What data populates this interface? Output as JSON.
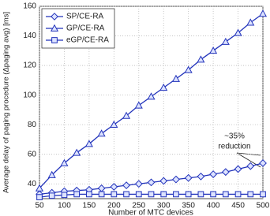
{
  "chart_data": {
    "type": "line",
    "xlabel": "Number of MTC devices",
    "ylabel": "Average delay of paging procedure (Δpaging avg) [ms]",
    "x": [
      50,
      75,
      100,
      125,
      150,
      175,
      200,
      225,
      250,
      275,
      300,
      325,
      350,
      375,
      400,
      425,
      450,
      475,
      500
    ],
    "series": [
      {
        "name": "SP/CE-RA",
        "color": "#2233bb",
        "marker": "diamond",
        "values": [
          33,
          34,
          35,
          35.5,
          36,
          37,
          38,
          39,
          40,
          41,
          42,
          43,
          44,
          45,
          46.5,
          48,
          50,
          52,
          54
        ]
      },
      {
        "name": "GP/CE-RA",
        "color": "#2233bb",
        "marker": "triangle",
        "values": [
          37,
          46,
          54,
          61,
          67,
          74,
          80,
          86,
          93,
          99,
          105,
          111,
          117,
          124,
          130,
          136,
          142,
          149,
          155
        ]
      },
      {
        "name": "eGP/CE-RA",
        "color": "#2233bb",
        "marker": "square",
        "values": [
          31,
          32,
          32.5,
          33,
          33,
          33,
          33,
          33,
          33,
          33,
          33,
          33,
          33,
          33,
          33,
          33,
          33,
          33,
          33
        ]
      }
    ],
    "xlim": [
      50,
      500
    ],
    "xticks": [
      50,
      100,
      150,
      200,
      250,
      300,
      350,
      400,
      450,
      500
    ],
    "ylim": [
      30,
      160
    ],
    "yticks": [
      40,
      60,
      80,
      100,
      120,
      140,
      160
    ],
    "grid": true,
    "legend": "upper left",
    "annotation": [
      "~35%",
      "reduction"
    ]
  }
}
